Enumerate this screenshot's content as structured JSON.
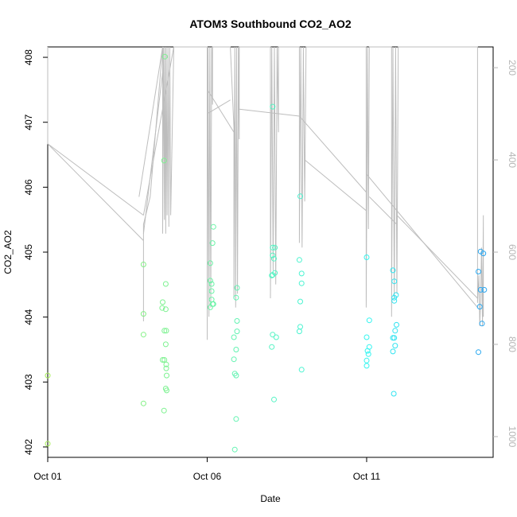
{
  "chart_data": {
    "type": "scatter",
    "title": "ATOM3 Southbound CO2_AO2",
    "xlabel": "Date",
    "ylabel": "CO2_AO2",
    "xlim": [
      0,
      1.0
    ],
    "ylim": [
      401.84,
      408.16
    ],
    "x_ticks": [
      {
        "value": 0,
        "label": "Oct 01"
      },
      {
        "value": 0.358,
        "label": "Oct 06"
      },
      {
        "value": 0.716,
        "label": "Oct 11"
      }
    ],
    "y_ticks": [
      402,
      403,
      404,
      405,
      406,
      407,
      408
    ],
    "right_axis": {
      "description": "pressure (flight altitude track, grey line)",
      "ylim_reversed": [
        1045,
        155
      ],
      "ticks": [
        200,
        400,
        600,
        800,
        1000
      ],
      "color": "#b5b5b5"
    },
    "grid": false,
    "colors": {
      "point_start": "#a8f05a",
      "point_mid": "#33f5f0",
      "point_end": "#2a9ff0",
      "line": "#bdbdbd"
    },
    "points": [
      [
        0.0,
        403.1
      ],
      [
        0.0,
        402.05
      ],
      [
        0.215,
        404.81
      ],
      [
        0.215,
        404.05
      ],
      [
        0.215,
        403.73
      ],
      [
        0.215,
        402.67
      ],
      [
        0.263,
        408.01
      ],
      [
        0.261,
        406.41
      ],
      [
        0.265,
        404.51
      ],
      [
        0.258,
        404.23
      ],
      [
        0.257,
        404.14
      ],
      [
        0.265,
        404.12
      ],
      [
        0.262,
        403.79
      ],
      [
        0.266,
        403.79
      ],
      [
        0.265,
        403.58
      ],
      [
        0.258,
        403.34
      ],
      [
        0.262,
        403.34
      ],
      [
        0.266,
        403.27
      ],
      [
        0.266,
        403.21
      ],
      [
        0.267,
        403.1
      ],
      [
        0.265,
        402.9
      ],
      [
        0.267,
        402.87
      ],
      [
        0.261,
        402.56
      ],
      [
        0.372,
        405.39
      ],
      [
        0.37,
        405.14
      ],
      [
        0.365,
        404.83
      ],
      [
        0.365,
        404.56
      ],
      [
        0.368,
        404.51
      ],
      [
        0.368,
        404.4
      ],
      [
        0.368,
        404.27
      ],
      [
        0.37,
        404.2
      ],
      [
        0.372,
        404.2
      ],
      [
        0.365,
        404.15
      ],
      [
        0.425,
        404.45
      ],
      [
        0.423,
        404.3
      ],
      [
        0.425,
        403.94
      ],
      [
        0.425,
        403.78
      ],
      [
        0.418,
        403.69
      ],
      [
        0.423,
        403.5
      ],
      [
        0.418,
        403.35
      ],
      [
        0.42,
        403.13
      ],
      [
        0.423,
        403.1
      ],
      [
        0.423,
        402.43
      ],
      [
        0.42,
        401.96
      ],
      [
        0.505,
        407.24
      ],
      [
        0.505,
        405.07
      ],
      [
        0.51,
        405.07
      ],
      [
        0.505,
        404.95
      ],
      [
        0.508,
        404.9
      ],
      [
        0.505,
        404.65
      ],
      [
        0.503,
        404.64
      ],
      [
        0.51,
        404.68
      ],
      [
        0.505,
        403.73
      ],
      [
        0.513,
        403.69
      ],
      [
        0.503,
        403.54
      ],
      [
        0.508,
        402.73
      ],
      [
        0.567,
        405.86
      ],
      [
        0.565,
        404.88
      ],
      [
        0.57,
        404.67
      ],
      [
        0.57,
        404.52
      ],
      [
        0.567,
        404.24
      ],
      [
        0.567,
        403.85
      ],
      [
        0.565,
        403.78
      ],
      [
        0.57,
        403.19
      ],
      [
        0.716,
        404.92
      ],
      [
        0.722,
        403.95
      ],
      [
        0.716,
        403.69
      ],
      [
        0.722,
        403.54
      ],
      [
        0.718,
        403.48
      ],
      [
        0.72,
        403.43
      ],
      [
        0.716,
        403.33
      ],
      [
        0.716,
        403.25
      ],
      [
        0.775,
        404.72
      ],
      [
        0.778,
        404.55
      ],
      [
        0.782,
        404.34
      ],
      [
        0.778,
        404.3
      ],
      [
        0.778,
        404.25
      ],
      [
        0.783,
        403.88
      ],
      [
        0.78,
        403.79
      ],
      [
        0.778,
        403.68
      ],
      [
        0.775,
        403.68
      ],
      [
        0.78,
        403.56
      ],
      [
        0.775,
        403.47
      ],
      [
        0.777,
        402.82
      ],
      [
        0.972,
        405.01
      ],
      [
        0.978,
        404.98
      ],
      [
        0.967,
        404.7
      ],
      [
        0.972,
        404.42
      ],
      [
        0.98,
        404.42
      ],
      [
        0.97,
        404.16
      ],
      [
        0.975,
        403.9
      ],
      [
        0.967,
        403.46
      ]
    ],
    "pressure_track": [
      [
        0.0,
        155
      ],
      [
        0.0,
        365
      ],
      [
        0.215,
        575
      ],
      [
        0.215,
        750
      ],
      [
        0.215,
        540
      ],
      [
        0.23,
        480
      ],
      [
        0.258,
        155
      ],
      [
        0.258,
        560
      ],
      [
        0.26,
        155
      ],
      [
        0.262,
        530
      ],
      [
        0.263,
        155
      ],
      [
        0.265,
        560
      ],
      [
        0.266,
        155
      ],
      [
        0.268,
        520
      ],
      [
        0.27,
        155
      ],
      [
        0.272,
        545
      ],
      [
        0.274,
        155
      ],
      [
        0.276,
        520
      ],
      [
        0.283,
        155
      ],
      [
        0.358,
        155
      ],
      [
        0.358,
        790
      ],
      [
        0.36,
        155
      ],
      [
        0.362,
        740
      ],
      [
        0.364,
        155
      ],
      [
        0.366,
        720
      ],
      [
        0.368,
        155
      ],
      [
        0.37,
        280
      ],
      [
        0.37,
        155
      ],
      [
        0.41,
        155
      ],
      [
        0.418,
        330
      ],
      [
        0.418,
        700
      ],
      [
        0.42,
        155
      ],
      [
        0.422,
        720
      ],
      [
        0.424,
        155
      ],
      [
        0.426,
        690
      ],
      [
        0.428,
        155
      ],
      [
        0.43,
        355
      ],
      [
        0.43,
        155
      ],
      [
        0.5,
        155
      ],
      [
        0.5,
        700
      ],
      [
        0.503,
        155
      ],
      [
        0.506,
        640
      ],
      [
        0.509,
        155
      ],
      [
        0.512,
        670
      ],
      [
        0.515,
        155
      ],
      [
        0.518,
        340
      ],
      [
        0.518,
        155
      ],
      [
        0.565,
        155
      ],
      [
        0.565,
        580
      ],
      [
        0.568,
        155
      ],
      [
        0.571,
        590
      ],
      [
        0.574,
        155
      ],
      [
        0.577,
        490
      ],
      [
        0.58,
        155
      ],
      [
        0.715,
        155
      ],
      [
        0.715,
        720
      ],
      [
        0.718,
        155
      ],
      [
        0.72,
        550
      ],
      [
        0.722,
        155
      ],
      [
        0.772,
        155
      ],
      [
        0.772,
        740
      ],
      [
        0.775,
        155
      ],
      [
        0.778,
        700
      ],
      [
        0.781,
        155
      ],
      [
        0.784,
        690
      ],
      [
        0.787,
        155
      ],
      [
        0.965,
        155
      ],
      [
        0.965,
        710
      ],
      [
        0.968,
        650
      ],
      [
        0.97,
        760
      ],
      [
        0.972,
        700
      ],
      [
        0.974,
        590
      ],
      [
        0.976,
        760
      ],
      [
        0.978,
        520
      ],
      [
        0.978,
        740
      ]
    ],
    "pressure_connectors": [
      [
        [
          0.0,
          365
        ],
        [
          0.215,
          520
        ]
      ],
      [
        [
          0.358,
          300
        ],
        [
          0.41,
          270
        ]
      ],
      [
        [
          0.36,
          250
        ],
        [
          0.418,
          340
        ]
      ],
      [
        [
          0.43,
          290
        ],
        [
          0.565,
          305
        ]
      ],
      [
        [
          0.565,
          305
        ],
        [
          0.715,
          470
        ]
      ],
      [
        [
          0.577,
          400
        ],
        [
          0.715,
          510
        ]
      ],
      [
        [
          0.715,
          430
        ],
        [
          0.965,
          720
        ]
      ],
      [
        [
          0.722,
          480
        ],
        [
          0.784,
          540
        ]
      ],
      [
        [
          0.784,
          520
        ],
        [
          0.965,
          700
        ]
      ],
      [
        [
          0.205,
          480
        ],
        [
          0.258,
          155
        ]
      ],
      [
        [
          0.215,
          560
        ],
        [
          0.258,
          210
        ]
      ],
      [
        [
          0.283,
          155
        ],
        [
          0.215,
          520
        ]
      ]
    ]
  }
}
